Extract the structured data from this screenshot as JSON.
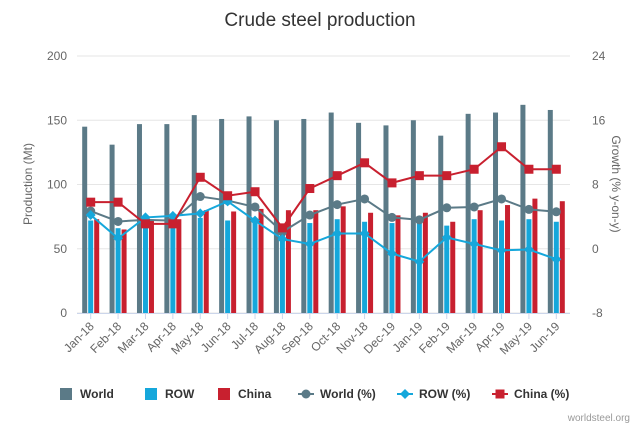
{
  "chart_data": {
    "type": "bar",
    "title": "Crude steel production",
    "categories": [
      "Jan-18",
      "Feb-18",
      "Mar-18",
      "Apr-18",
      "May-18",
      "Jun-18",
      "Jul-18",
      "Aug-18",
      "Sep-18",
      "Oct-18",
      "Nov-18",
      "Dec-19",
      "Jan-19",
      "Feb-19",
      "Mar-19",
      "Apr-19",
      "May-19",
      "Jun-19"
    ],
    "y_left": {
      "label": "Production (Mt)",
      "ticks": [
        "0",
        "50",
        "100",
        "150",
        "200"
      ],
      "range": [
        0,
        200
      ]
    },
    "y_right": {
      "label": "Growth (% y-on-y)",
      "ticks": [
        "-8",
        "0",
        "8",
        "16",
        "24"
      ],
      "range": [
        -8,
        24
      ]
    },
    "series": [
      {
        "name": "World",
        "kind": "bar",
        "axis": "left",
        "color": "#5b7a87",
        "values": [
          145,
          131,
          147,
          147,
          154,
          151,
          153,
          150,
          151,
          156,
          148,
          146,
          150,
          138,
          155,
          156,
          162,
          158
        ]
      },
      {
        "name": "ROW",
        "kind": "bar",
        "axis": "left",
        "color": "#15a7db",
        "values": [
          72,
          66,
          75,
          74,
          74,
          72,
          72,
          69,
          70,
          73,
          71,
          70,
          72,
          68,
          73,
          72,
          73,
          71
        ]
      },
      {
        "name": "China",
        "kind": "bar",
        "axis": "left",
        "color": "#c8202f",
        "values": [
          73,
          65,
          72,
          73,
          80,
          79,
          81,
          80,
          80,
          83,
          78,
          76,
          78,
          71,
          80,
          84,
          89,
          87
        ]
      },
      {
        "name": "World (%)",
        "kind": "line",
        "axis": "right",
        "color": "#5b7a87",
        "marker": "circle",
        "values": [
          4.7,
          3.4,
          3.6,
          3.5,
          6.5,
          6.0,
          5.2,
          2.1,
          4.2,
          5.5,
          6.2,
          3.9,
          3.6,
          5.1,
          5.2,
          6.2,
          4.9,
          4.6
        ]
      },
      {
        "name": "ROW (%)",
        "kind": "line",
        "axis": "right",
        "color": "#15a7db",
        "marker": "diamond",
        "values": [
          4.2,
          1.3,
          3.9,
          4.1,
          4.4,
          5.9,
          3.5,
          1.2,
          0.6,
          1.9,
          1.9,
          -0.6,
          -1.6,
          1.4,
          0.6,
          -0.2,
          -0.1,
          -1.3
        ]
      },
      {
        "name": "China (%)",
        "kind": "line",
        "axis": "right",
        "color": "#c8202f",
        "marker": "square",
        "values": [
          5.8,
          5.8,
          3.1,
          3.1,
          8.9,
          6.6,
          7.1,
          2.6,
          7.5,
          9.1,
          10.7,
          8.2,
          9.1,
          9.1,
          9.9,
          12.7,
          9.9,
          9.9
        ]
      }
    ],
    "legend_position": "bottom",
    "grid": true
  },
  "credit": "worldsteel.org"
}
